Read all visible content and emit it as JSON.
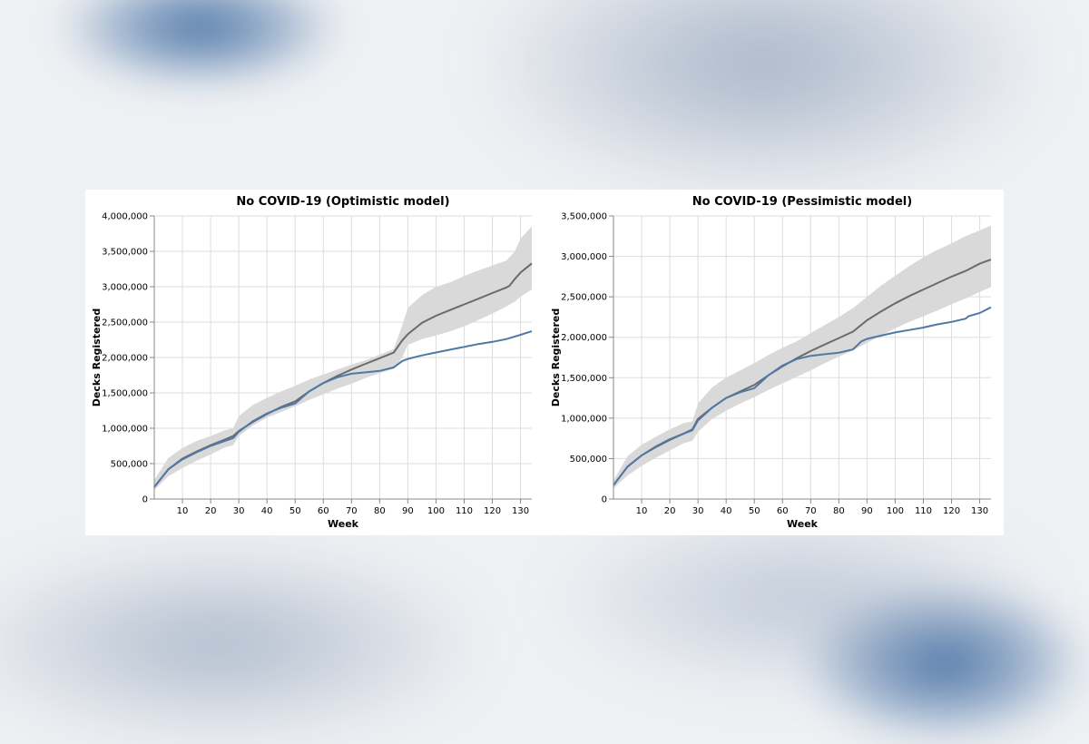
{
  "chart_data": [
    {
      "type": "line",
      "title": "No COVID-19 (Optimistic model)",
      "xlabel": "Week",
      "ylabel": "Decks Registered",
      "xlim": [
        0,
        134
      ],
      "ylim": [
        0,
        4000000
      ],
      "xticks": [
        10,
        20,
        30,
        40,
        50,
        60,
        70,
        80,
        90,
        100,
        110,
        120,
        130
      ],
      "yticks": [
        0,
        500000,
        1000000,
        1500000,
        2000000,
        2500000,
        3000000,
        3500000,
        4000000
      ],
      "ytick_labels": [
        "0",
        "500,000",
        "1,000,000",
        "1,500,000",
        "2,000,000",
        "2,500,000",
        "3,000,000",
        "3,500,000",
        "4,000,000"
      ],
      "grid": true,
      "series": [
        {
          "role": "band",
          "color": "#d9d9d9",
          "x": [
            0,
            5,
            10,
            15,
            20,
            25,
            28,
            30,
            35,
            40,
            45,
            50,
            55,
            60,
            65,
            70,
            75,
            80,
            85,
            88,
            90,
            95,
            100,
            105,
            110,
            115,
            120,
            125,
            128,
            130,
            134
          ],
          "upper": [
            270000,
            580000,
            720000,
            820000,
            890000,
            970000,
            1000000,
            1170000,
            1330000,
            1430000,
            1520000,
            1600000,
            1690000,
            1760000,
            1830000,
            1900000,
            1960000,
            2040000,
            2120000,
            2450000,
            2700000,
            2880000,
            3000000,
            3060000,
            3150000,
            3230000,
            3300000,
            3370000,
            3500000,
            3680000,
            3850000
          ],
          "lower": [
            130000,
            320000,
            440000,
            540000,
            630000,
            730000,
            760000,
            890000,
            1040000,
            1150000,
            1230000,
            1310000,
            1400000,
            1480000,
            1560000,
            1630000,
            1710000,
            1780000,
            1840000,
            2000000,
            2180000,
            2260000,
            2310000,
            2370000,
            2440000,
            2530000,
            2620000,
            2720000,
            2790000,
            2860000,
            2960000
          ]
        },
        {
          "role": "line",
          "color": "#6b6b6b",
          "x": [
            0,
            5,
            10,
            15,
            20,
            25,
            28,
            30,
            35,
            40,
            45,
            50,
            55,
            60,
            65,
            70,
            75,
            80,
            85,
            88,
            90,
            95,
            100,
            105,
            110,
            115,
            120,
            125,
            126,
            128,
            130,
            134
          ],
          "y": [
            170000,
            420000,
            570000,
            670000,
            760000,
            840000,
            890000,
            960000,
            1090000,
            1200000,
            1300000,
            1380000,
            1520000,
            1640000,
            1740000,
            1830000,
            1910000,
            1990000,
            2070000,
            2240000,
            2330000,
            2490000,
            2590000,
            2670000,
            2750000,
            2830000,
            2910000,
            2990000,
            3010000,
            3110000,
            3200000,
            3330000
          ]
        },
        {
          "role": "line",
          "color": "#4e79a7",
          "x": [
            0,
            5,
            10,
            15,
            20,
            25,
            28,
            30,
            35,
            40,
            45,
            50,
            55,
            60,
            65,
            70,
            75,
            80,
            85,
            88,
            90,
            95,
            100,
            105,
            110,
            115,
            120,
            125,
            130,
            134
          ],
          "y": [
            170000,
            420000,
            560000,
            660000,
            750000,
            820000,
            860000,
            950000,
            1100000,
            1210000,
            1290000,
            1350000,
            1520000,
            1640000,
            1720000,
            1770000,
            1790000,
            1810000,
            1860000,
            1950000,
            1980000,
            2030000,
            2070000,
            2110000,
            2150000,
            2190000,
            2220000,
            2260000,
            2320000,
            2370000
          ]
        }
      ]
    },
    {
      "type": "line",
      "title": "No COVID-19 (Pessimistic model)",
      "xlabel": "Week",
      "ylabel": "Decks Registered",
      "xlim": [
        0,
        134
      ],
      "ylim": [
        0,
        3500000
      ],
      "xticks": [
        10,
        20,
        30,
        40,
        50,
        60,
        70,
        80,
        90,
        100,
        110,
        120,
        130
      ],
      "yticks": [
        0,
        500000,
        1000000,
        1500000,
        2000000,
        2500000,
        3000000,
        3500000
      ],
      "ytick_labels": [
        "0",
        "500,000",
        "1,000,000",
        "1,500,000",
        "2,000,000",
        "2,500,000",
        "3,000,000",
        "3,500,000"
      ],
      "grid": true,
      "series": [
        {
          "role": "band",
          "color": "#d9d9d9",
          "x": [
            0,
            5,
            10,
            15,
            20,
            25,
            28,
            30,
            35,
            40,
            45,
            50,
            55,
            60,
            65,
            70,
            75,
            80,
            85,
            90,
            95,
            100,
            105,
            110,
            115,
            120,
            125,
            130,
            134
          ],
          "upper": [
            230000,
            530000,
            670000,
            770000,
            860000,
            940000,
            960000,
            1180000,
            1380000,
            1500000,
            1590000,
            1680000,
            1780000,
            1870000,
            1950000,
            2050000,
            2150000,
            2250000,
            2360000,
            2500000,
            2640000,
            2760000,
            2880000,
            2990000,
            3080000,
            3160000,
            3250000,
            3320000,
            3380000
          ],
          "lower": [
            130000,
            290000,
            410000,
            510000,
            600000,
            690000,
            720000,
            830000,
            990000,
            1090000,
            1180000,
            1260000,
            1350000,
            1430000,
            1510000,
            1590000,
            1680000,
            1760000,
            1840000,
            1930000,
            2020000,
            2110000,
            2190000,
            2260000,
            2330000,
            2410000,
            2480000,
            2560000,
            2620000
          ]
        },
        {
          "role": "line",
          "color": "#6b6b6b",
          "x": [
            0,
            5,
            10,
            15,
            20,
            25,
            28,
            30,
            35,
            40,
            45,
            50,
            55,
            60,
            65,
            70,
            75,
            80,
            85,
            90,
            95,
            100,
            105,
            110,
            115,
            120,
            125,
            130,
            134
          ],
          "y": [
            170000,
            400000,
            540000,
            640000,
            730000,
            810000,
            860000,
            990000,
            1130000,
            1250000,
            1330000,
            1410000,
            1530000,
            1640000,
            1740000,
            1830000,
            1910000,
            1990000,
            2070000,
            2210000,
            2320000,
            2420000,
            2510000,
            2590000,
            2670000,
            2750000,
            2820000,
            2910000,
            2960000
          ]
        },
        {
          "role": "line",
          "color": "#4e79a7",
          "x": [
            0,
            5,
            10,
            15,
            20,
            25,
            28,
            30,
            35,
            40,
            45,
            50,
            55,
            60,
            65,
            70,
            75,
            80,
            85,
            88,
            90,
            95,
            100,
            105,
            110,
            115,
            120,
            125,
            126,
            130,
            134
          ],
          "y": [
            170000,
            400000,
            540000,
            650000,
            740000,
            810000,
            850000,
            970000,
            1130000,
            1250000,
            1320000,
            1370000,
            1530000,
            1650000,
            1730000,
            1770000,
            1790000,
            1810000,
            1850000,
            1950000,
            1980000,
            2020000,
            2060000,
            2090000,
            2120000,
            2160000,
            2190000,
            2230000,
            2260000,
            2300000,
            2370000
          ]
        }
      ]
    }
  ]
}
